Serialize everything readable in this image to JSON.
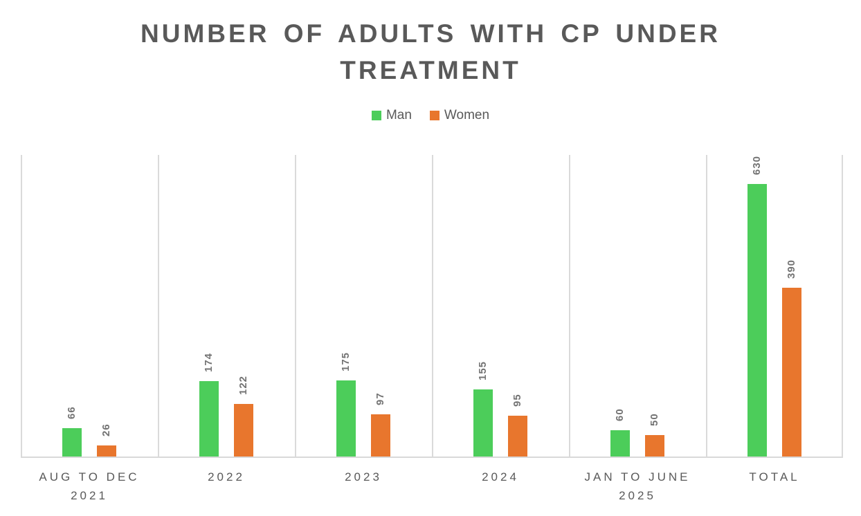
{
  "chart_data": {
    "type": "bar",
    "title": "NUMBER OF ADULTS WITH CP UNDER TREATMENT",
    "categories": [
      "AUG TO DEC 2021",
      "2022",
      "2023",
      "2024",
      "JAN TO JUNE 2025",
      "TOTAL"
    ],
    "series": [
      {
        "name": "Man",
        "color": "#4CCD5A",
        "values": [
          66,
          174,
          175,
          155,
          60,
          630
        ]
      },
      {
        "name": "Women",
        "color": "#E8762D",
        "values": [
          26,
          122,
          97,
          95,
          50,
          390
        ]
      }
    ],
    "ylim": [
      0,
      700
    ],
    "xlabel": "",
    "ylabel": "",
    "grid": "vertical-category-separators-only",
    "legend_position": "top-center",
    "data_labels": {
      "rotation_deg": -90,
      "color": "#737373"
    },
    "colors": {
      "title": "#595959",
      "axis_labels": "#595959",
      "gridlines": "#DADADA",
      "axis_line": "#D9D9D9",
      "background": "#FFFFFF"
    }
  }
}
